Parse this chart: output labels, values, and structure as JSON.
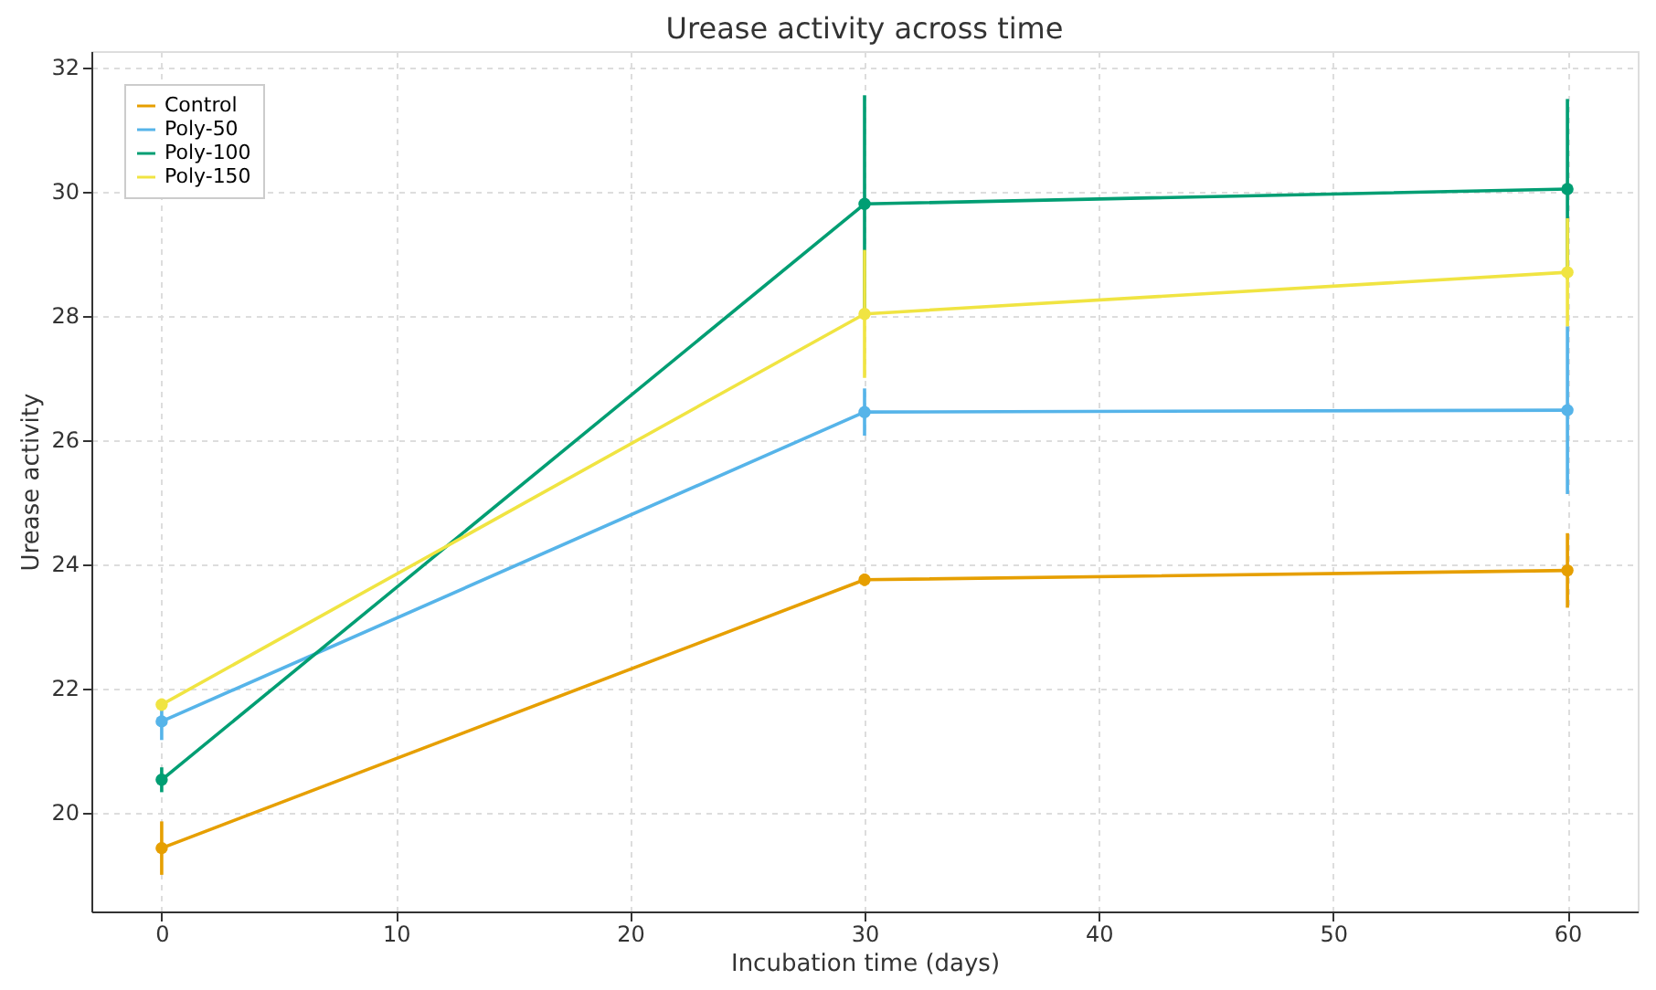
{
  "chart_data": {
    "type": "line",
    "title": "Urease activity across time",
    "xlabel": "Incubation time (days)",
    "ylabel": "Urease activity",
    "x": [
      0,
      30,
      60
    ],
    "series": [
      {
        "name": "Control",
        "color": "#e69f00",
        "values": [
          19.42,
          23.74,
          23.89
        ],
        "errors": [
          0.43,
          0.1,
          0.6
        ]
      },
      {
        "name": "Poly-50",
        "color": "#56b4e9",
        "values": [
          21.46,
          26.44,
          26.47
        ],
        "errors": [
          0.3,
          0.38,
          1.35
        ]
      },
      {
        "name": "Poly-100",
        "color": "#009e73",
        "values": [
          20.52,
          29.79,
          30.03
        ],
        "errors": [
          0.2,
          1.75,
          1.45
        ]
      },
      {
        "name": "Poly-150",
        "color": "#f0e442",
        "values": [
          21.73,
          28.02,
          28.69
        ],
        "errors": [
          0.1,
          1.03,
          0.87
        ]
      }
    ],
    "xlim": [
      -3,
      63
    ],
    "xticks": [
      0,
      10,
      20,
      30,
      40,
      50,
      60
    ],
    "ylim": [
      18.4,
      32.25
    ],
    "yticks": [
      20,
      22,
      24,
      26,
      28,
      30,
      32
    ],
    "grid": true,
    "legend": "top left",
    "marker": "circle",
    "line_style": "solid"
  }
}
